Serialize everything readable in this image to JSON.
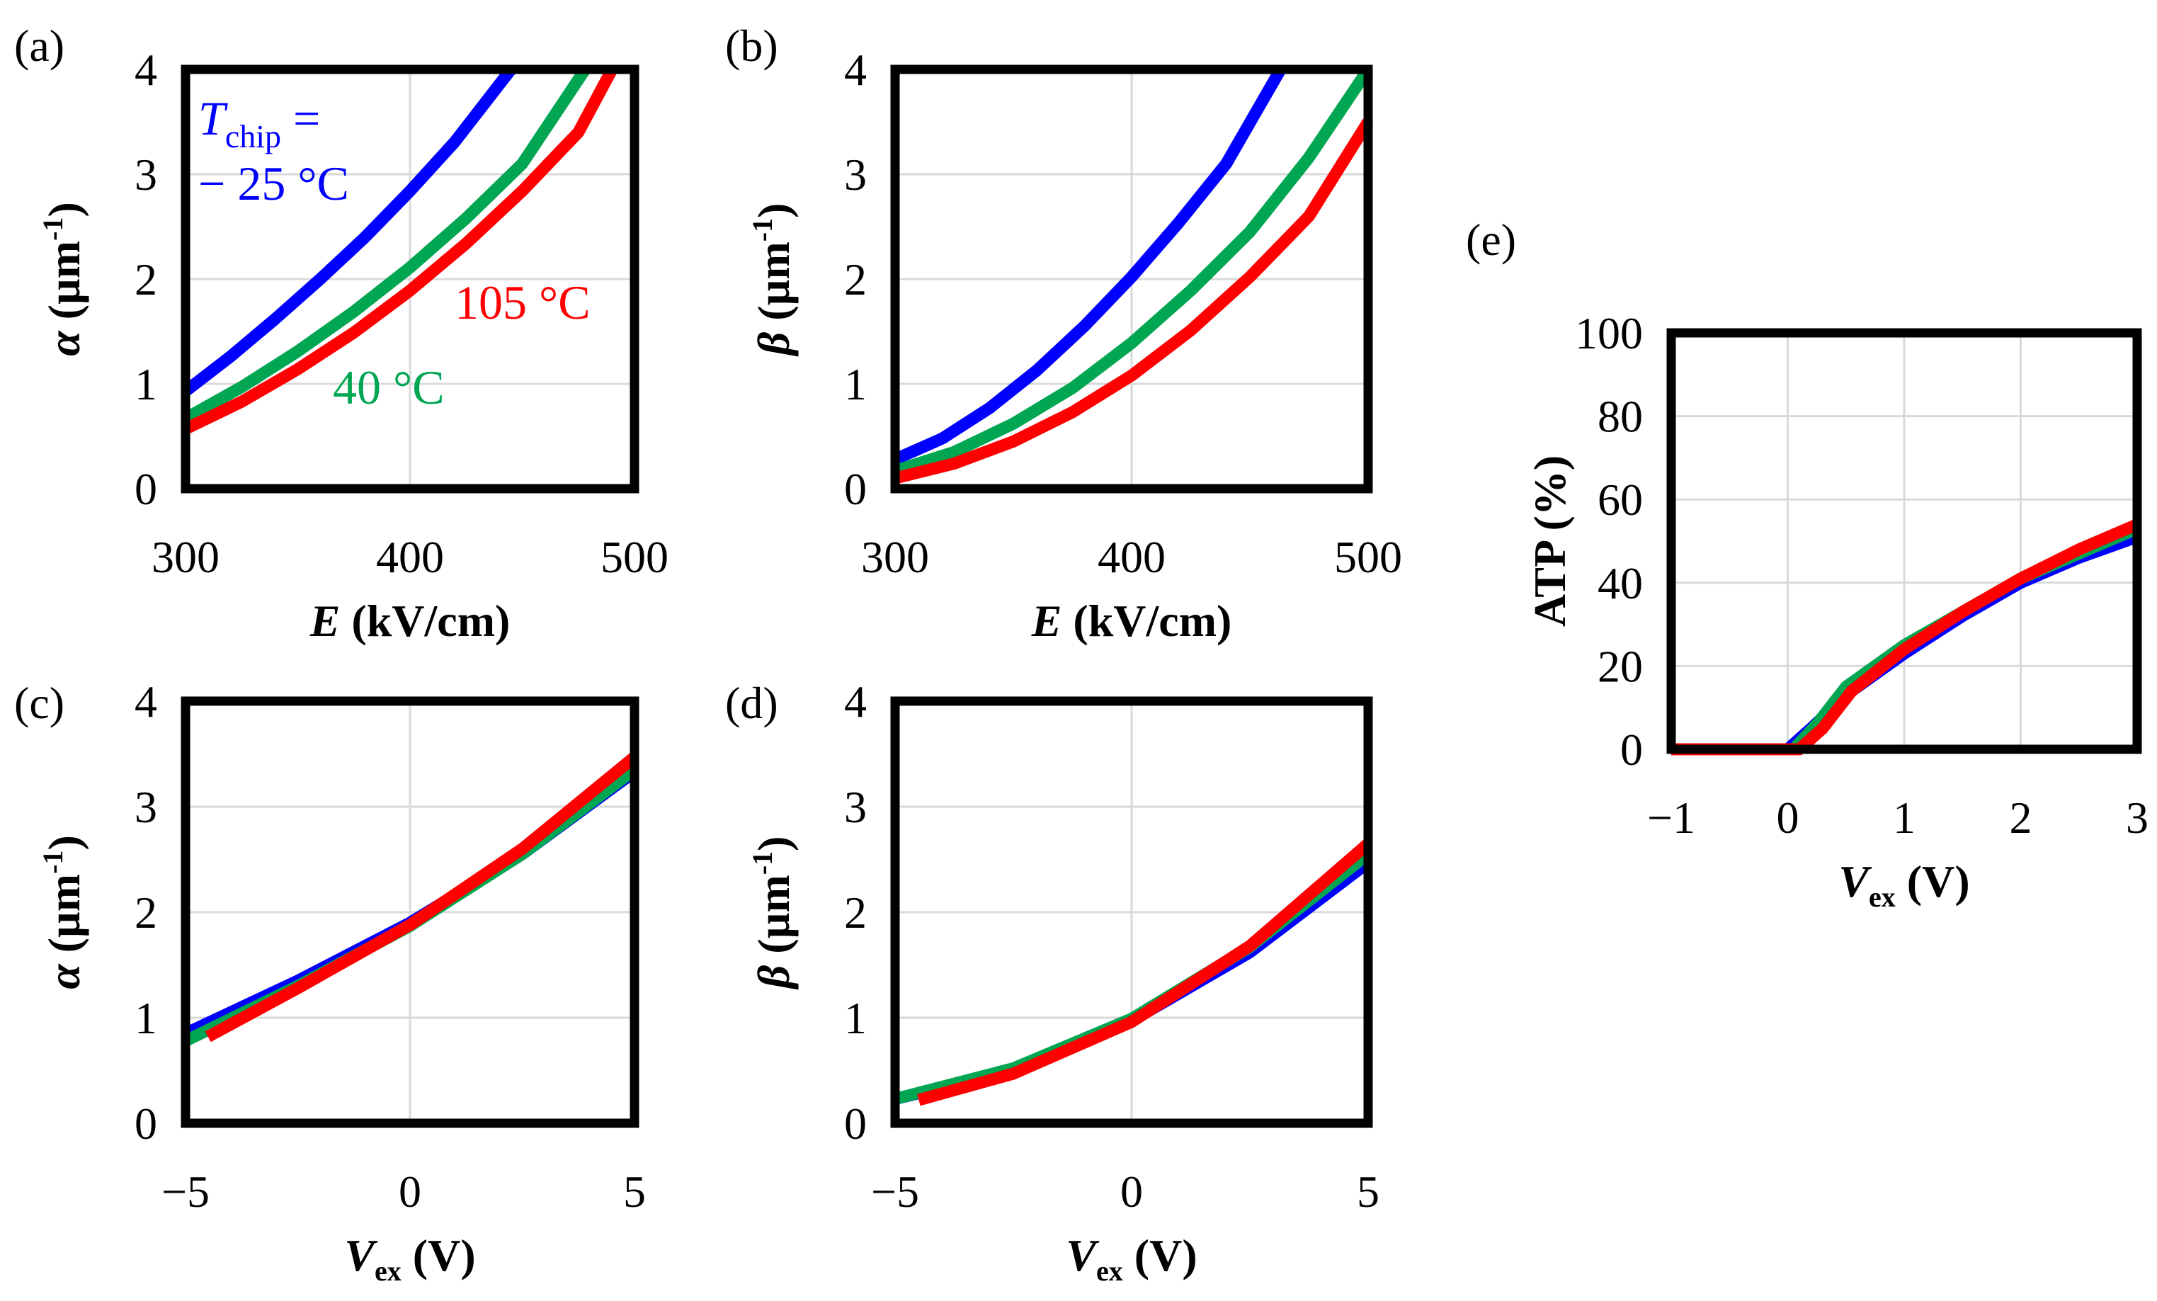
{
  "colors": {
    "blue": "#0000ff",
    "green": "#00a651",
    "red": "#ff0000",
    "grid": "#d9d9d9",
    "frame": "#000000"
  },
  "chart_data": [
    {
      "panel": "(a)",
      "type": "line",
      "xlabel": {
        "var": "E",
        "unit": " (kV/cm)"
      },
      "ylabel": {
        "var": "α",
        "unit": " (µm",
        "sup": "-1",
        "close": ")"
      },
      "xlim": [
        300,
        500
      ],
      "ylim": [
        0,
        4
      ],
      "xticks": [
        300,
        400,
        500
      ],
      "yticks": [
        0,
        1,
        2,
        3,
        4
      ],
      "series": [
        {
          "name": "−25 °C",
          "color": "#0000ff",
          "x": [
            300,
            320,
            340,
            360,
            380,
            400,
            420,
            445
          ],
          "y": [
            0.93,
            1.26,
            1.62,
            2.0,
            2.4,
            2.84,
            3.31,
            4.0
          ]
        },
        {
          "name": "40 °C",
          "color": "#00a651",
          "x": [
            300,
            325,
            350,
            375,
            400,
            425,
            450,
            478
          ],
          "y": [
            0.67,
            0.97,
            1.31,
            1.69,
            2.11,
            2.58,
            3.1,
            4.0
          ]
        },
        {
          "name": "105 °C",
          "color": "#ff0000",
          "x": [
            300,
            325,
            350,
            375,
            400,
            425,
            450,
            475,
            490
          ],
          "y": [
            0.57,
            0.83,
            1.14,
            1.49,
            1.89,
            2.34,
            2.84,
            3.4,
            4.0
          ]
        }
      ],
      "annotations": [
        {
          "kind": "tchip",
          "var": "T",
          "sub": "chip",
          "eq": " =",
          "line2": "− 25 °C",
          "color": "#0000ff"
        },
        {
          "text": "105 °C",
          "color": "#ff0000"
        },
        {
          "text": "40 °C",
          "color": "#00a651"
        }
      ]
    },
    {
      "panel": "(b)",
      "type": "line",
      "xlabel": {
        "var": "E",
        "unit": " (kV/cm)"
      },
      "ylabel": {
        "var": "β",
        "unit": " (µm",
        "sup": "-1",
        "close": ")"
      },
      "xlim": [
        300,
        500
      ],
      "ylim": [
        0,
        4
      ],
      "xticks": [
        300,
        400,
        500
      ],
      "yticks": [
        0,
        1,
        2,
        3,
        4
      ],
      "series": [
        {
          "name": "−25 °C",
          "color": "#0000ff",
          "x": [
            300,
            320,
            340,
            360,
            380,
            400,
            420,
            440,
            463
          ],
          "y": [
            0.28,
            0.48,
            0.77,
            1.13,
            1.55,
            2.02,
            2.54,
            3.1,
            4.0
          ]
        },
        {
          "name": "40 °C",
          "color": "#00a651",
          "x": [
            300,
            325,
            350,
            375,
            400,
            425,
            450,
            475,
            500
          ],
          "y": [
            0.17,
            0.35,
            0.62,
            0.96,
            1.39,
            1.89,
            2.45,
            3.16,
            4.0
          ]
        },
        {
          "name": "105 °C",
          "color": "#ff0000",
          "x": [
            300,
            325,
            350,
            375,
            400,
            425,
            450,
            475,
            500
          ],
          "y": [
            0.1,
            0.24,
            0.45,
            0.73,
            1.08,
            1.51,
            2.02,
            2.6,
            3.5
          ]
        }
      ]
    },
    {
      "panel": "(c)",
      "type": "line",
      "xlabel": {
        "var": "V",
        "sub": "ex",
        "unit": " (V)"
      },
      "ylabel": {
        "var": "α",
        "unit": " (µm",
        "sup": "-1",
        "close": ")"
      },
      "xlim": [
        -5,
        5
      ],
      "ylim": [
        0,
        4
      ],
      "xticks": [
        -5,
        0,
        5
      ],
      "xticklabels": [
        "−5",
        "0",
        "5"
      ],
      "yticks": [
        0,
        1,
        2,
        3,
        4
      ],
      "series": [
        {
          "name": "−25 °C",
          "color": "#0000ff",
          "x": [
            -5,
            -2.5,
            0,
            2.5,
            5
          ],
          "y": [
            0.85,
            1.35,
            1.9,
            2.55,
            3.33
          ]
        },
        {
          "name": "40 °C",
          "color": "#00a651",
          "x": [
            -5,
            -2.5,
            0,
            2.5,
            5
          ],
          "y": [
            0.78,
            1.3,
            1.87,
            2.55,
            3.35
          ]
        },
        {
          "name": "105 °C",
          "color": "#ff0000",
          "x": [
            -4.5,
            -2.5,
            0,
            2.5,
            5
          ],
          "y": [
            0.82,
            1.28,
            1.88,
            2.6,
            3.47
          ]
        }
      ]
    },
    {
      "panel": "(d)",
      "type": "line",
      "xlabel": {
        "var": "V",
        "sub": "ex",
        "unit": " (V)"
      },
      "ylabel": {
        "var": "β",
        "unit": " (µm",
        "sup": "-1",
        "close": ")"
      },
      "xlim": [
        -5,
        5
      ],
      "ylim": [
        0,
        4
      ],
      "xticks": [
        -5,
        0,
        5
      ],
      "xticklabels": [
        "−5",
        "0",
        "5"
      ],
      "yticks": [
        0,
        1,
        2,
        3,
        4
      ],
      "series": [
        {
          "name": "−25 °C",
          "color": "#0000ff",
          "x": [
            -5,
            -2.5,
            0,
            2.5,
            5
          ],
          "y": [
            0.23,
            0.5,
            0.97,
            1.62,
            2.47
          ]
        },
        {
          "name": "40 °C",
          "color": "#00a651",
          "x": [
            -5,
            -2.5,
            0,
            2.5,
            5
          ],
          "y": [
            0.23,
            0.52,
            0.99,
            1.67,
            2.55
          ]
        },
        {
          "name": "105 °C",
          "color": "#ff0000",
          "x": [
            -4.5,
            -2.5,
            0,
            2.5,
            5
          ],
          "y": [
            0.22,
            0.47,
            0.96,
            1.68,
            2.65
          ]
        }
      ]
    },
    {
      "panel": "(e)",
      "type": "line",
      "xlabel": {
        "var": "V",
        "sub": "ex",
        "unit": " (V)"
      },
      "ylabel": {
        "text": "ATP (%)"
      },
      "xlim": [
        -1,
        3
      ],
      "ylim": [
        0,
        100
      ],
      "xticks": [
        -1,
        0,
        1,
        2,
        3
      ],
      "xticklabels": [
        "−1",
        "0",
        "1",
        "2",
        "3"
      ],
      "yticks": [
        0,
        20,
        40,
        60,
        80,
        100
      ],
      "series": [
        {
          "name": "−25 °C",
          "color": "#0000ff",
          "x": [
            -1,
            0,
            0.2,
            0.5,
            1,
            1.5,
            2,
            2.5,
            3
          ],
          "y": [
            0,
            0,
            5,
            13,
            23,
            32,
            40,
            46,
            51
          ]
        },
        {
          "name": "40 °C",
          "color": "#00a651",
          "x": [
            -1,
            0.05,
            0.25,
            0.5,
            1,
            1.5,
            2,
            2.5,
            3
          ],
          "y": [
            0,
            0,
            6,
            15,
            25,
            33,
            41,
            47,
            53
          ]
        },
        {
          "name": "105 °C",
          "color": "#ff0000",
          "x": [
            -1,
            0.1,
            0.3,
            0.55,
            1,
            1.5,
            2,
            2.5,
            3
          ],
          "y": [
            0,
            0,
            5,
            14,
            24,
            33,
            41,
            48,
            54
          ]
        }
      ]
    }
  ]
}
